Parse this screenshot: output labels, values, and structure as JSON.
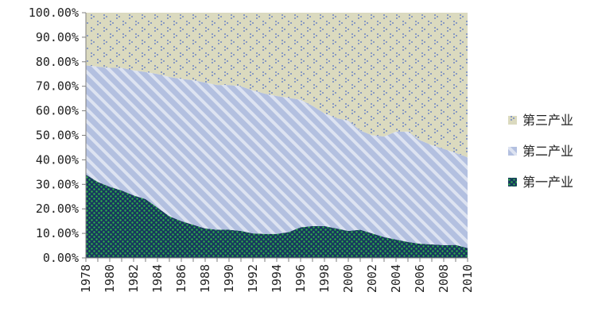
{
  "chart_data": {
    "type": "area",
    "stacked": "percent",
    "title": "",
    "xlabel": "",
    "ylabel": "",
    "ylim": [
      0,
      100
    ],
    "y_ticks": [
      "0.00%",
      "10.00%",
      "20.00%",
      "30.00%",
      "40.00%",
      "50.00%",
      "60.00%",
      "70.00%",
      "80.00%",
      "90.00%",
      "100.00%"
    ],
    "x_tick_labels": [
      "1978",
      "1980",
      "1982",
      "1984",
      "1986",
      "1988",
      "1990",
      "1992",
      "1994",
      "1996",
      "1998",
      "2000",
      "2002",
      "2004",
      "2006",
      "2008",
      "2010"
    ],
    "x": [
      1978,
      1979,
      1980,
      1981,
      1982,
      1983,
      1984,
      1985,
      1986,
      1987,
      1988,
      1989,
      1990,
      1991,
      1992,
      1993,
      1994,
      1995,
      1996,
      1997,
      1998,
      1999,
      2000,
      2001,
      2002,
      2003,
      2004,
      2005,
      2006,
      2007,
      2008,
      2009,
      2010
    ],
    "legend_position": "right",
    "series": [
      {
        "name": "第一产业",
        "color": "#17375e",
        "dot_color": "#2fb34a",
        "values": [
          34,
          31,
          29,
          27.5,
          25.5,
          24,
          20.5,
          17,
          15,
          13.5,
          12,
          11.5,
          11.5,
          11,
          10,
          9.8,
          9.8,
          10.5,
          12.5,
          13,
          13,
          12,
          11,
          11.5,
          10,
          8.5,
          7.5,
          6.5,
          5.8,
          5.5,
          5.2,
          5.3,
          4
        ]
      },
      {
        "name": "第二产业",
        "color": "#b3c0e0",
        "stripe_color": "#ffffff",
        "values": [
          44.5,
          47,
          48.5,
          50,
          51,
          51.8,
          54.5,
          56.8,
          58,
          59,
          59.5,
          59,
          59,
          59,
          58.3,
          57.2,
          56.2,
          54.8,
          52,
          49,
          46,
          45,
          45,
          40.5,
          40,
          41,
          44,
          45,
          42.2,
          40.5,
          39.3,
          37.5,
          37
        ]
      },
      {
        "name": "第三产业",
        "color": "#dbdabf",
        "dot_color": "#6f86c4",
        "values": [
          21.5,
          22,
          22.5,
          22.5,
          23.5,
          24.2,
          25,
          26.2,
          27,
          27.5,
          28.5,
          29.5,
          29.5,
          30,
          31.7,
          33,
          34,
          34.7,
          35.5,
          38,
          41,
          43,
          44,
          48,
          50,
          50.5,
          48.5,
          48.5,
          52,
          54,
          55.5,
          57.2,
          59
        ]
      }
    ]
  }
}
